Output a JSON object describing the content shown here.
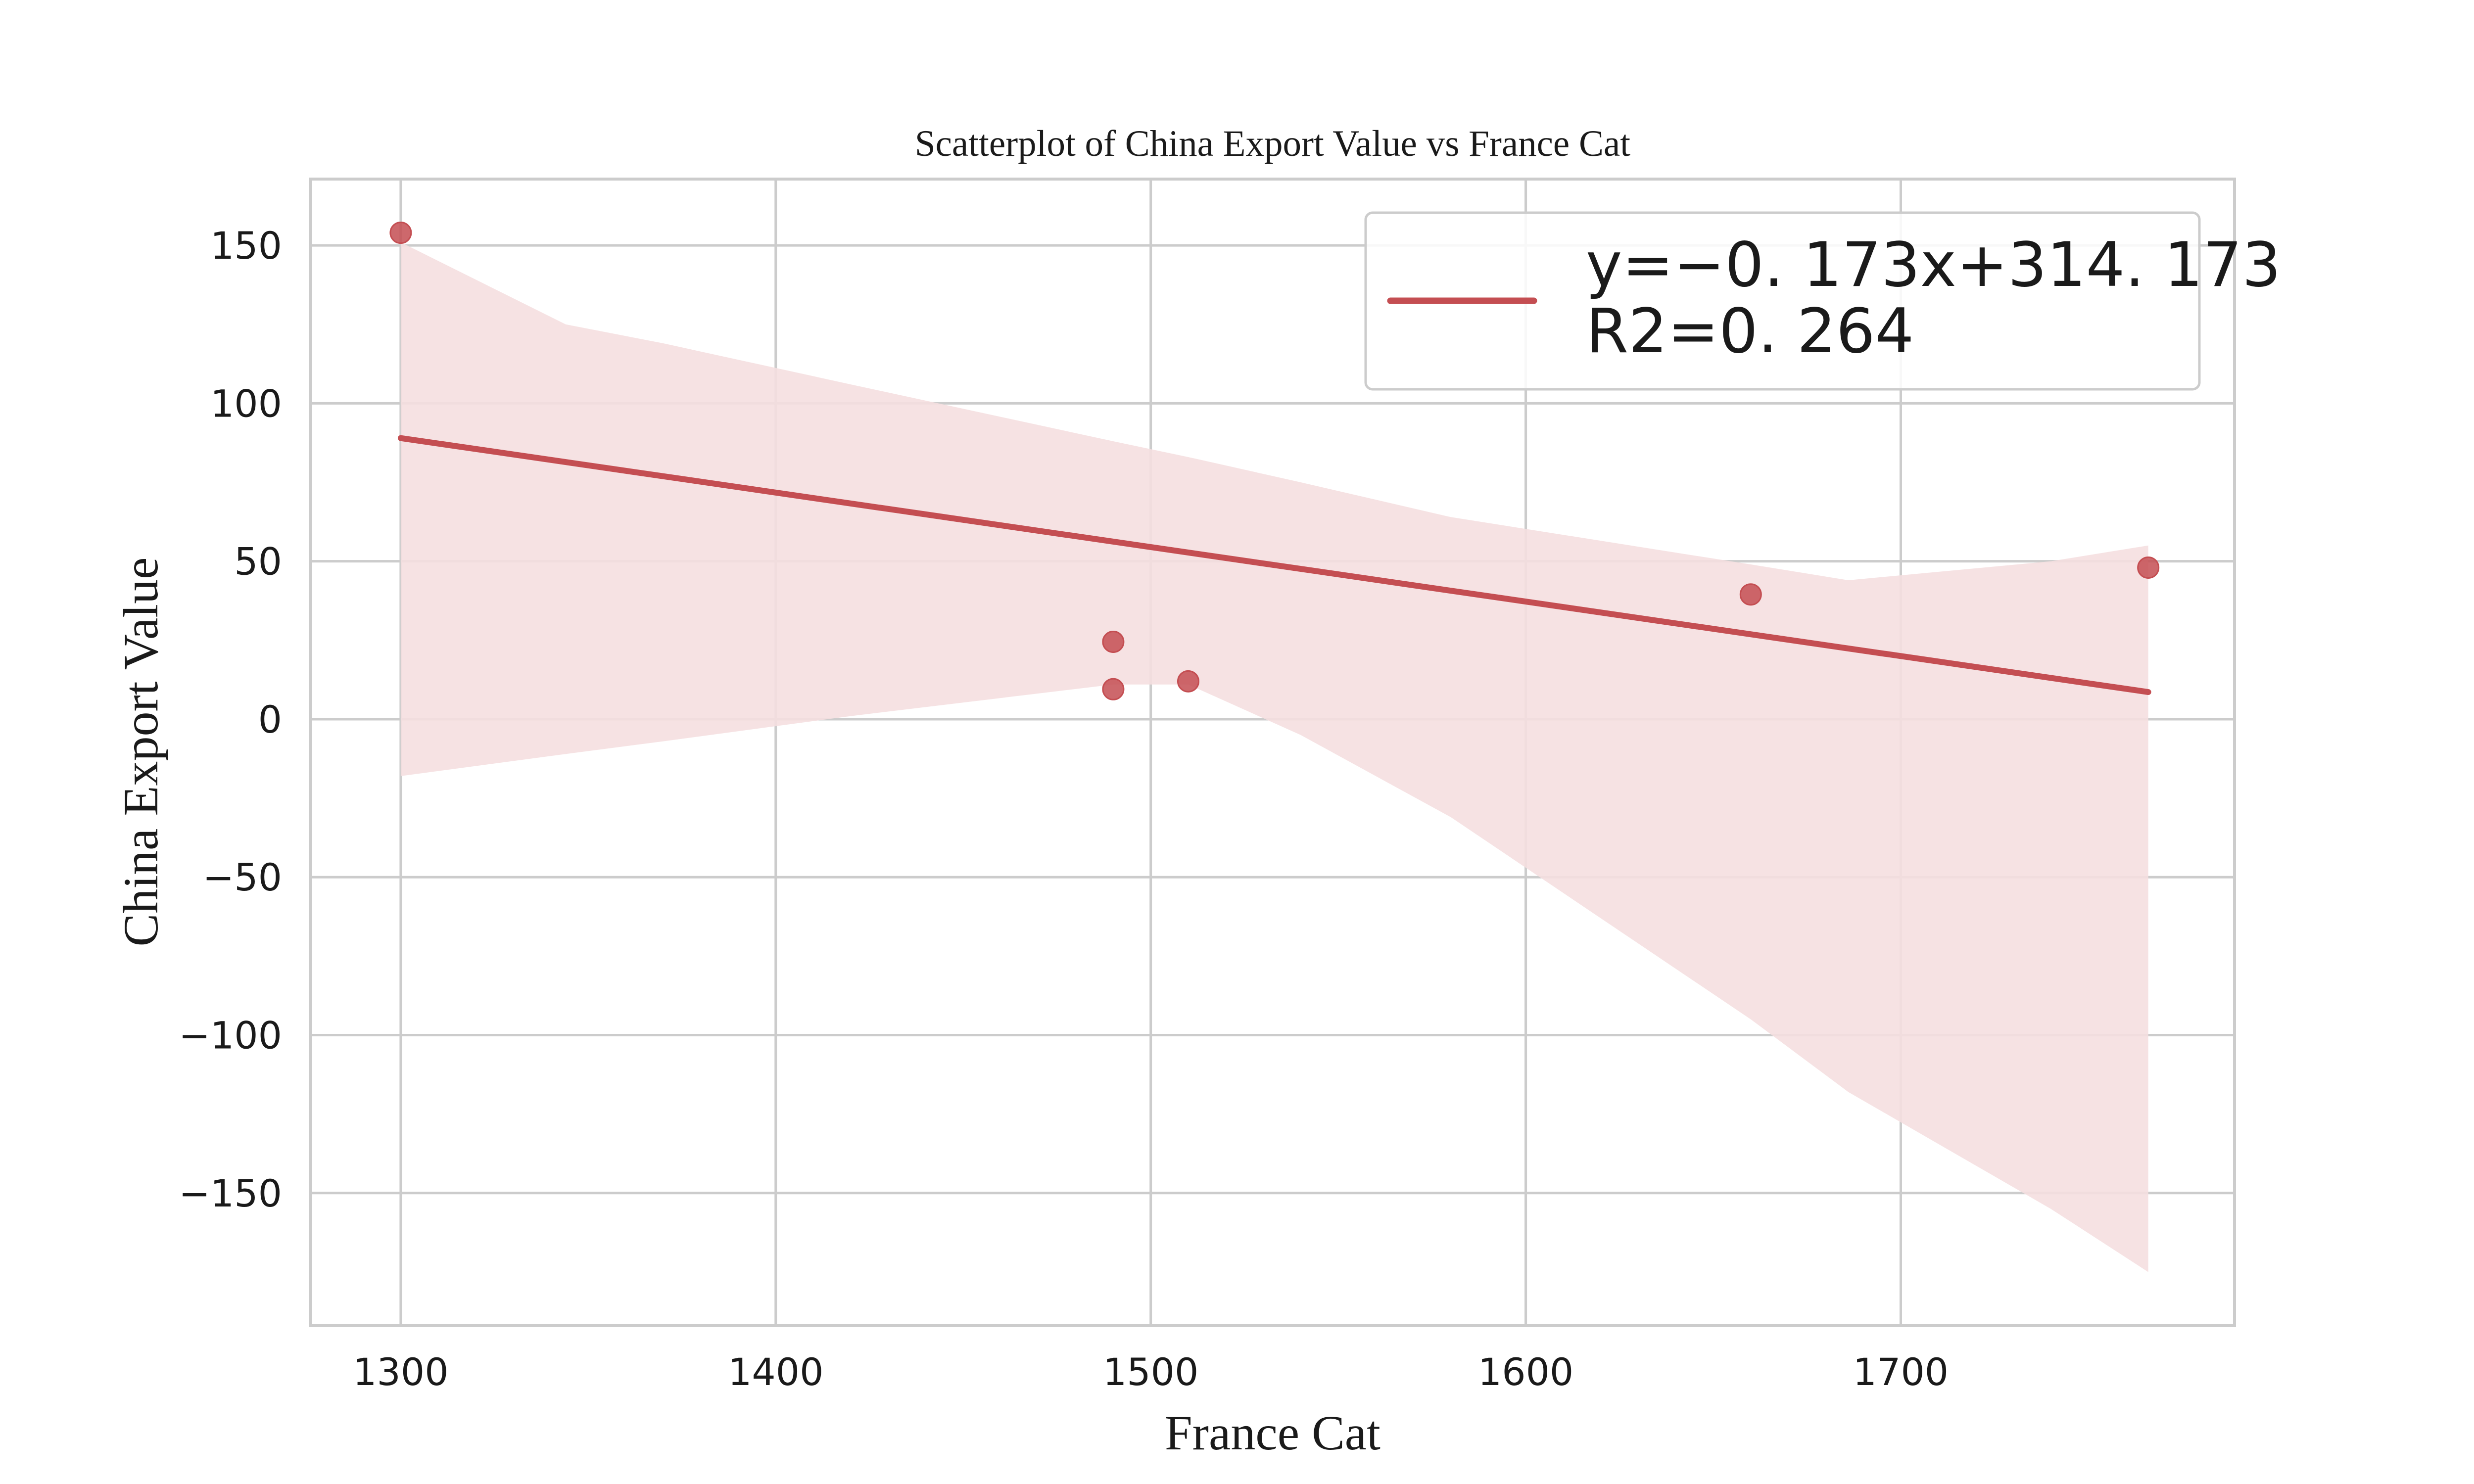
{
  "chart_data": {
    "type": "scatter",
    "title": "Scatterplot of China Export Value vs France Cat",
    "xlabel": "France Cat",
    "ylabel": "China Export Value",
    "xlim": [
      1276,
      1789
    ],
    "ylim": [
      -192,
      171
    ],
    "xticks": [
      1300,
      1400,
      1500,
      1600,
      1700
    ],
    "yticks": [
      150,
      100,
      50,
      0,
      -50,
      -100,
      -150
    ],
    "grid": true,
    "legend_position": "top-right",
    "colors": {
      "points": "#c44e52",
      "line": "#c44e52",
      "band": "#f5dfe0"
    },
    "series": [
      {
        "type": "scatter",
        "x": [
          1300,
          1490,
          1490,
          1510,
          1660,
          1766
        ],
        "y": [
          154,
          24.5,
          9.5,
          12,
          39.5,
          48
        ]
      }
    ],
    "regression": {
      "label_line1": "y=−0. 173x+314. 173",
      "label_line2": "R2=0. 264",
      "x": [
        1300,
        1766
      ],
      "y": [
        89,
        8.6
      ]
    },
    "confidence_band": {
      "x": [
        1300,
        1344,
        1370,
        1420,
        1490,
        1510,
        1540,
        1580,
        1660,
        1686,
        1740,
        1766
      ],
      "upper": [
        151,
        125,
        119,
        106,
        88,
        83,
        75,
        64,
        49,
        44,
        50,
        55
      ],
      "lower": [
        -18,
        -11,
        -7,
        1,
        11,
        11,
        -5,
        -31,
        -95,
        -118,
        -155,
        -175
      ]
    }
  }
}
